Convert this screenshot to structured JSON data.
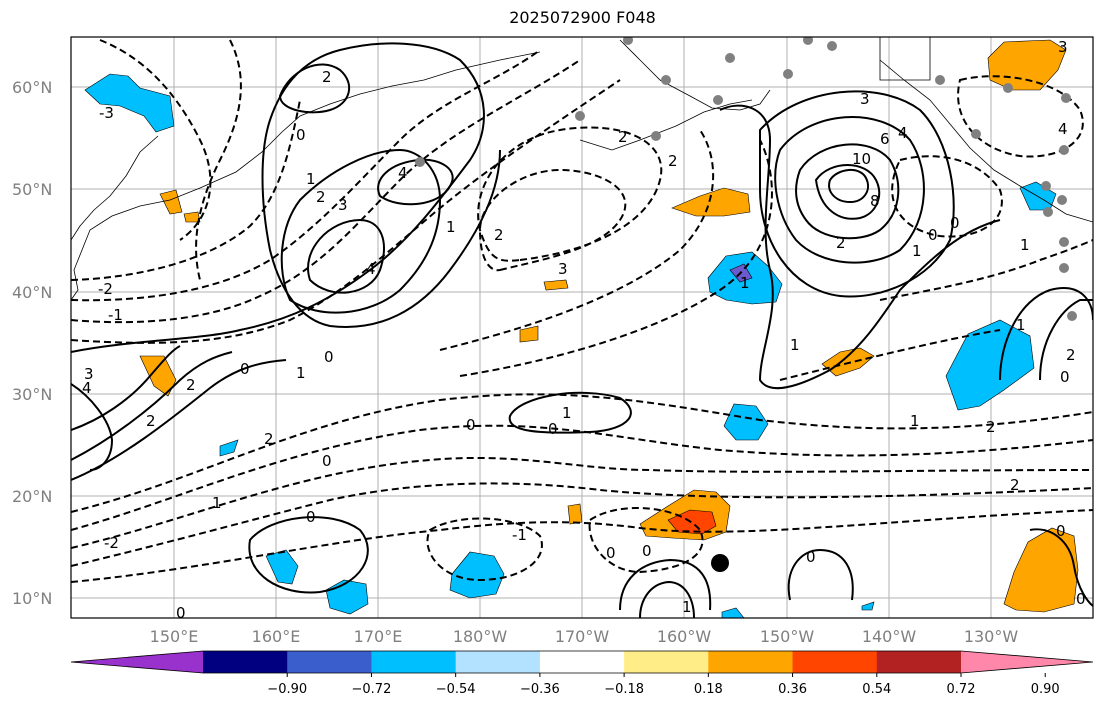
{
  "title": "2025072900 F048",
  "map": {
    "lat_labels": [
      "60°N",
      "50°N",
      "40°N",
      "30°N",
      "20°N",
      "10°N"
    ],
    "lon_labels": [
      "150°E",
      "160°E",
      "170°E",
      "180°W",
      "170°W",
      "160°W",
      "150°W",
      "140°W",
      "130°W"
    ],
    "contour_labels": [
      "-3",
      "-2",
      "-1",
      "0",
      "1",
      "2",
      "3",
      "4",
      "6",
      "8",
      "10"
    ],
    "marker": "storm-center-dot"
  },
  "colorbar": {
    "ticks": [
      "−0.90",
      "−0.72",
      "−0.54",
      "−0.36",
      "−0.18",
      "0.18",
      "0.36",
      "0.54",
      "0.72",
      "0.90"
    ],
    "colors": [
      "#9932cc",
      "#000080",
      "#3a5fcd",
      "#00bfff",
      "#b2e2ff",
      "#ffffff",
      "#ffee88",
      "#ffa500",
      "#ff4500",
      "#b22222",
      "#ff88aa"
    ]
  }
}
